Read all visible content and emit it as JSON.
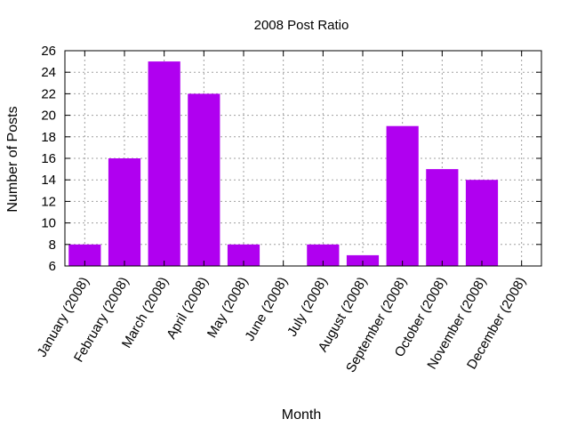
{
  "chart_data": {
    "type": "bar",
    "title": "2008 Post Ratio",
    "xlabel": "Month",
    "ylabel": "Number of Posts",
    "categories": [
      "January (2008)",
      "February (2008)",
      "March (2008)",
      "April (2008)",
      "May (2008)",
      "June (2008)",
      "July (2008)",
      "August (2008)",
      "September (2008)",
      "October (2008)",
      "November (2008)",
      "December (2008)"
    ],
    "values": [
      8,
      16,
      25,
      22,
      8,
      6,
      8,
      7,
      19,
      15,
      14,
      6
    ],
    "ylim": [
      6,
      26
    ],
    "yticks": [
      6,
      8,
      10,
      12,
      14,
      16,
      18,
      20,
      22,
      24,
      26
    ],
    "grid": true,
    "bar_color": "#b000f0"
  }
}
